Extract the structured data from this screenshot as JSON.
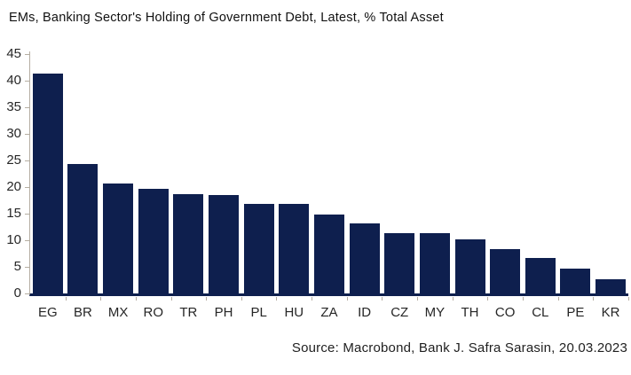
{
  "title": "EMs, Banking Sector's Holding of Government Debt, Latest, % Total Asset",
  "source_line": "Source: Macrobond, Bank J. Safra Sarasin, 20.03.2023",
  "colors": {
    "bar": "#0e1f4e",
    "axis_line": "#b5aea2",
    "text": "#262626",
    "background": "#ffffff"
  },
  "chart_data": {
    "type": "bar",
    "title": "EMs, Banking Sector's Holding of Government Debt, Latest, % Total Asset",
    "categories": [
      "EG",
      "BR",
      "MX",
      "RO",
      "TR",
      "PH",
      "PL",
      "HU",
      "ZA",
      "ID",
      "CZ",
      "MY",
      "TH",
      "CO",
      "CL",
      "PE",
      "KR"
    ],
    "values": [
      41.3,
      24.3,
      20.7,
      19.7,
      18.6,
      18.5,
      16.8,
      16.8,
      14.8,
      13.1,
      11.4,
      11.4,
      10.2,
      8.4,
      6.6,
      4.7,
      2.7
    ],
    "xlabel": "",
    "ylabel": "% Total Asset",
    "ylim": [
      0,
      45.5
    ],
    "yticks": [
      45,
      40,
      35,
      30,
      25,
      20,
      15,
      10,
      5,
      0
    ],
    "grid": false,
    "legend": false,
    "bar_color": "#0e1f4e",
    "annotation": "Source: Macrobond, Bank J. Safra Sarasin, 20.03.2023"
  }
}
